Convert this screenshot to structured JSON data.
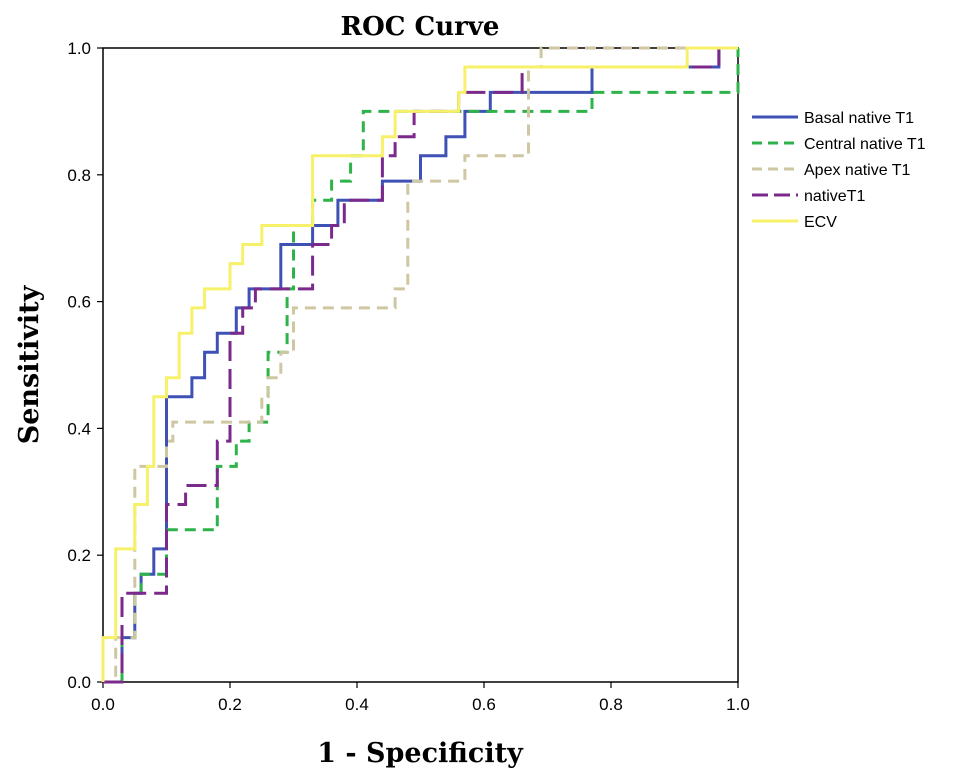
{
  "chart_data": {
    "type": "line",
    "title": "ROC Curve",
    "xlabel": "1 - Specificity",
    "ylabel": "Sensitivity",
    "xlim": [
      0,
      1
    ],
    "ylim": [
      0,
      1
    ],
    "xticks": [
      "0.0",
      "0.2",
      "0.4",
      "0.6",
      "0.8",
      "1.0"
    ],
    "yticks": [
      "0.0",
      "0.2",
      "0.4",
      "0.6",
      "0.8",
      "1.0"
    ],
    "grid": false,
    "legend_position": "right",
    "series": [
      {
        "name": "Basal native T1",
        "color": "#3f51b5",
        "dash": "solid",
        "points": [
          [
            0,
            0
          ],
          [
            0.03,
            0
          ],
          [
            0.03,
            0.07
          ],
          [
            0.05,
            0.07
          ],
          [
            0.05,
            0.14
          ],
          [
            0.06,
            0.14
          ],
          [
            0.06,
            0.17
          ],
          [
            0.08,
            0.17
          ],
          [
            0.08,
            0.21
          ],
          [
            0.1,
            0.21
          ],
          [
            0.1,
            0.45
          ],
          [
            0.14,
            0.45
          ],
          [
            0.14,
            0.48
          ],
          [
            0.16,
            0.48
          ],
          [
            0.16,
            0.52
          ],
          [
            0.18,
            0.52
          ],
          [
            0.18,
            0.55
          ],
          [
            0.21,
            0.55
          ],
          [
            0.21,
            0.59
          ],
          [
            0.23,
            0.59
          ],
          [
            0.23,
            0.62
          ],
          [
            0.28,
            0.62
          ],
          [
            0.28,
            0.69
          ],
          [
            0.33,
            0.69
          ],
          [
            0.33,
            0.72
          ],
          [
            0.37,
            0.72
          ],
          [
            0.37,
            0.76
          ],
          [
            0.44,
            0.76
          ],
          [
            0.44,
            0.79
          ],
          [
            0.5,
            0.79
          ],
          [
            0.5,
            0.83
          ],
          [
            0.54,
            0.83
          ],
          [
            0.54,
            0.86
          ],
          [
            0.57,
            0.86
          ],
          [
            0.57,
            0.9
          ],
          [
            0.61,
            0.9
          ],
          [
            0.61,
            0.93
          ],
          [
            0.77,
            0.93
          ],
          [
            0.77,
            0.97
          ],
          [
            0.97,
            0.97
          ],
          [
            0.97,
            1.0
          ],
          [
            1.0,
            1.0
          ]
        ]
      },
      {
        "name": "Central native T1",
        "color": "#2eb34a",
        "dash": "dashed",
        "points": [
          [
            0,
            0
          ],
          [
            0.03,
            0
          ],
          [
            0.03,
            0.07
          ],
          [
            0.05,
            0.07
          ],
          [
            0.05,
            0.14
          ],
          [
            0.06,
            0.14
          ],
          [
            0.06,
            0.17
          ],
          [
            0.1,
            0.17
          ],
          [
            0.1,
            0.24
          ],
          [
            0.18,
            0.24
          ],
          [
            0.18,
            0.34
          ],
          [
            0.21,
            0.34
          ],
          [
            0.21,
            0.38
          ],
          [
            0.23,
            0.38
          ],
          [
            0.23,
            0.41
          ],
          [
            0.26,
            0.41
          ],
          [
            0.26,
            0.52
          ],
          [
            0.29,
            0.52
          ],
          [
            0.29,
            0.62
          ],
          [
            0.3,
            0.62
          ],
          [
            0.3,
            0.72
          ],
          [
            0.33,
            0.72
          ],
          [
            0.33,
            0.76
          ],
          [
            0.36,
            0.76
          ],
          [
            0.36,
            0.79
          ],
          [
            0.39,
            0.79
          ],
          [
            0.39,
            0.83
          ],
          [
            0.41,
            0.83
          ],
          [
            0.41,
            0.9
          ],
          [
            0.6,
            0.9
          ],
          [
            0.6,
            0.9
          ],
          [
            0.77,
            0.9
          ],
          [
            0.77,
            0.93
          ],
          [
            1.0,
            0.93
          ],
          [
            1.0,
            1.0
          ]
        ]
      },
      {
        "name": "Apex native T1",
        "color": "#cfc6a2",
        "dash": "dashed",
        "points": [
          [
            0,
            0
          ],
          [
            0.02,
            0
          ],
          [
            0.02,
            0.07
          ],
          [
            0.05,
            0.07
          ],
          [
            0.05,
            0.34
          ],
          [
            0.1,
            0.34
          ],
          [
            0.1,
            0.38
          ],
          [
            0.11,
            0.38
          ],
          [
            0.11,
            0.41
          ],
          [
            0.25,
            0.41
          ],
          [
            0.25,
            0.45
          ],
          [
            0.26,
            0.45
          ],
          [
            0.26,
            0.48
          ],
          [
            0.28,
            0.48
          ],
          [
            0.28,
            0.52
          ],
          [
            0.3,
            0.52
          ],
          [
            0.3,
            0.59
          ],
          [
            0.46,
            0.59
          ],
          [
            0.46,
            0.62
          ],
          [
            0.48,
            0.62
          ],
          [
            0.48,
            0.79
          ],
          [
            0.57,
            0.79
          ],
          [
            0.57,
            0.83
          ],
          [
            0.67,
            0.83
          ],
          [
            0.67,
            0.97
          ],
          [
            0.69,
            0.97
          ],
          [
            0.69,
            1.0
          ],
          [
            1.0,
            1.0
          ]
        ]
      },
      {
        "name": "nativeT1",
        "color": "#7b2a8c",
        "dash": "longdash",
        "points": [
          [
            0,
            0
          ],
          [
            0.03,
            0
          ],
          [
            0.03,
            0.14
          ],
          [
            0.1,
            0.14
          ],
          [
            0.1,
            0.28
          ],
          [
            0.13,
            0.28
          ],
          [
            0.13,
            0.31
          ],
          [
            0.18,
            0.31
          ],
          [
            0.18,
            0.38
          ],
          [
            0.2,
            0.38
          ],
          [
            0.2,
            0.55
          ],
          [
            0.22,
            0.55
          ],
          [
            0.22,
            0.59
          ],
          [
            0.24,
            0.59
          ],
          [
            0.24,
            0.62
          ],
          [
            0.33,
            0.62
          ],
          [
            0.33,
            0.69
          ],
          [
            0.36,
            0.69
          ],
          [
            0.36,
            0.72
          ],
          [
            0.38,
            0.72
          ],
          [
            0.38,
            0.76
          ],
          [
            0.44,
            0.76
          ],
          [
            0.44,
            0.83
          ],
          [
            0.46,
            0.83
          ],
          [
            0.46,
            0.86
          ],
          [
            0.49,
            0.86
          ],
          [
            0.49,
            0.9
          ],
          [
            0.56,
            0.9
          ],
          [
            0.56,
            0.93
          ],
          [
            0.66,
            0.93
          ],
          [
            0.66,
            0.97
          ],
          [
            0.92,
            0.97
          ],
          [
            0.92,
            0.97
          ],
          [
            0.97,
            0.97
          ],
          [
            0.97,
            1.0
          ],
          [
            1.0,
            1.0
          ]
        ]
      },
      {
        "name": "ECV",
        "color": "#f7f16a",
        "dash": "solid",
        "points": [
          [
            0,
            0
          ],
          [
            0,
            0.03
          ],
          [
            0,
            0.07
          ],
          [
            0.02,
            0.07
          ],
          [
            0.02,
            0.21
          ],
          [
            0.05,
            0.21
          ],
          [
            0.05,
            0.28
          ],
          [
            0.07,
            0.28
          ],
          [
            0.07,
            0.34
          ],
          [
            0.08,
            0.34
          ],
          [
            0.08,
            0.45
          ],
          [
            0.1,
            0.45
          ],
          [
            0.1,
            0.48
          ],
          [
            0.12,
            0.48
          ],
          [
            0.12,
            0.55
          ],
          [
            0.14,
            0.55
          ],
          [
            0.14,
            0.59
          ],
          [
            0.16,
            0.59
          ],
          [
            0.16,
            0.62
          ],
          [
            0.2,
            0.62
          ],
          [
            0.2,
            0.66
          ],
          [
            0.22,
            0.66
          ],
          [
            0.22,
            0.69
          ],
          [
            0.25,
            0.69
          ],
          [
            0.25,
            0.72
          ],
          [
            0.33,
            0.72
          ],
          [
            0.33,
            0.83
          ],
          [
            0.44,
            0.83
          ],
          [
            0.44,
            0.86
          ],
          [
            0.46,
            0.86
          ],
          [
            0.46,
            0.9
          ],
          [
            0.56,
            0.9
          ],
          [
            0.56,
            0.93
          ],
          [
            0.57,
            0.93
          ],
          [
            0.57,
            0.97
          ],
          [
            0.92,
            0.97
          ],
          [
            0.92,
            1.0
          ],
          [
            1.0,
            1.0
          ]
        ]
      }
    ]
  }
}
